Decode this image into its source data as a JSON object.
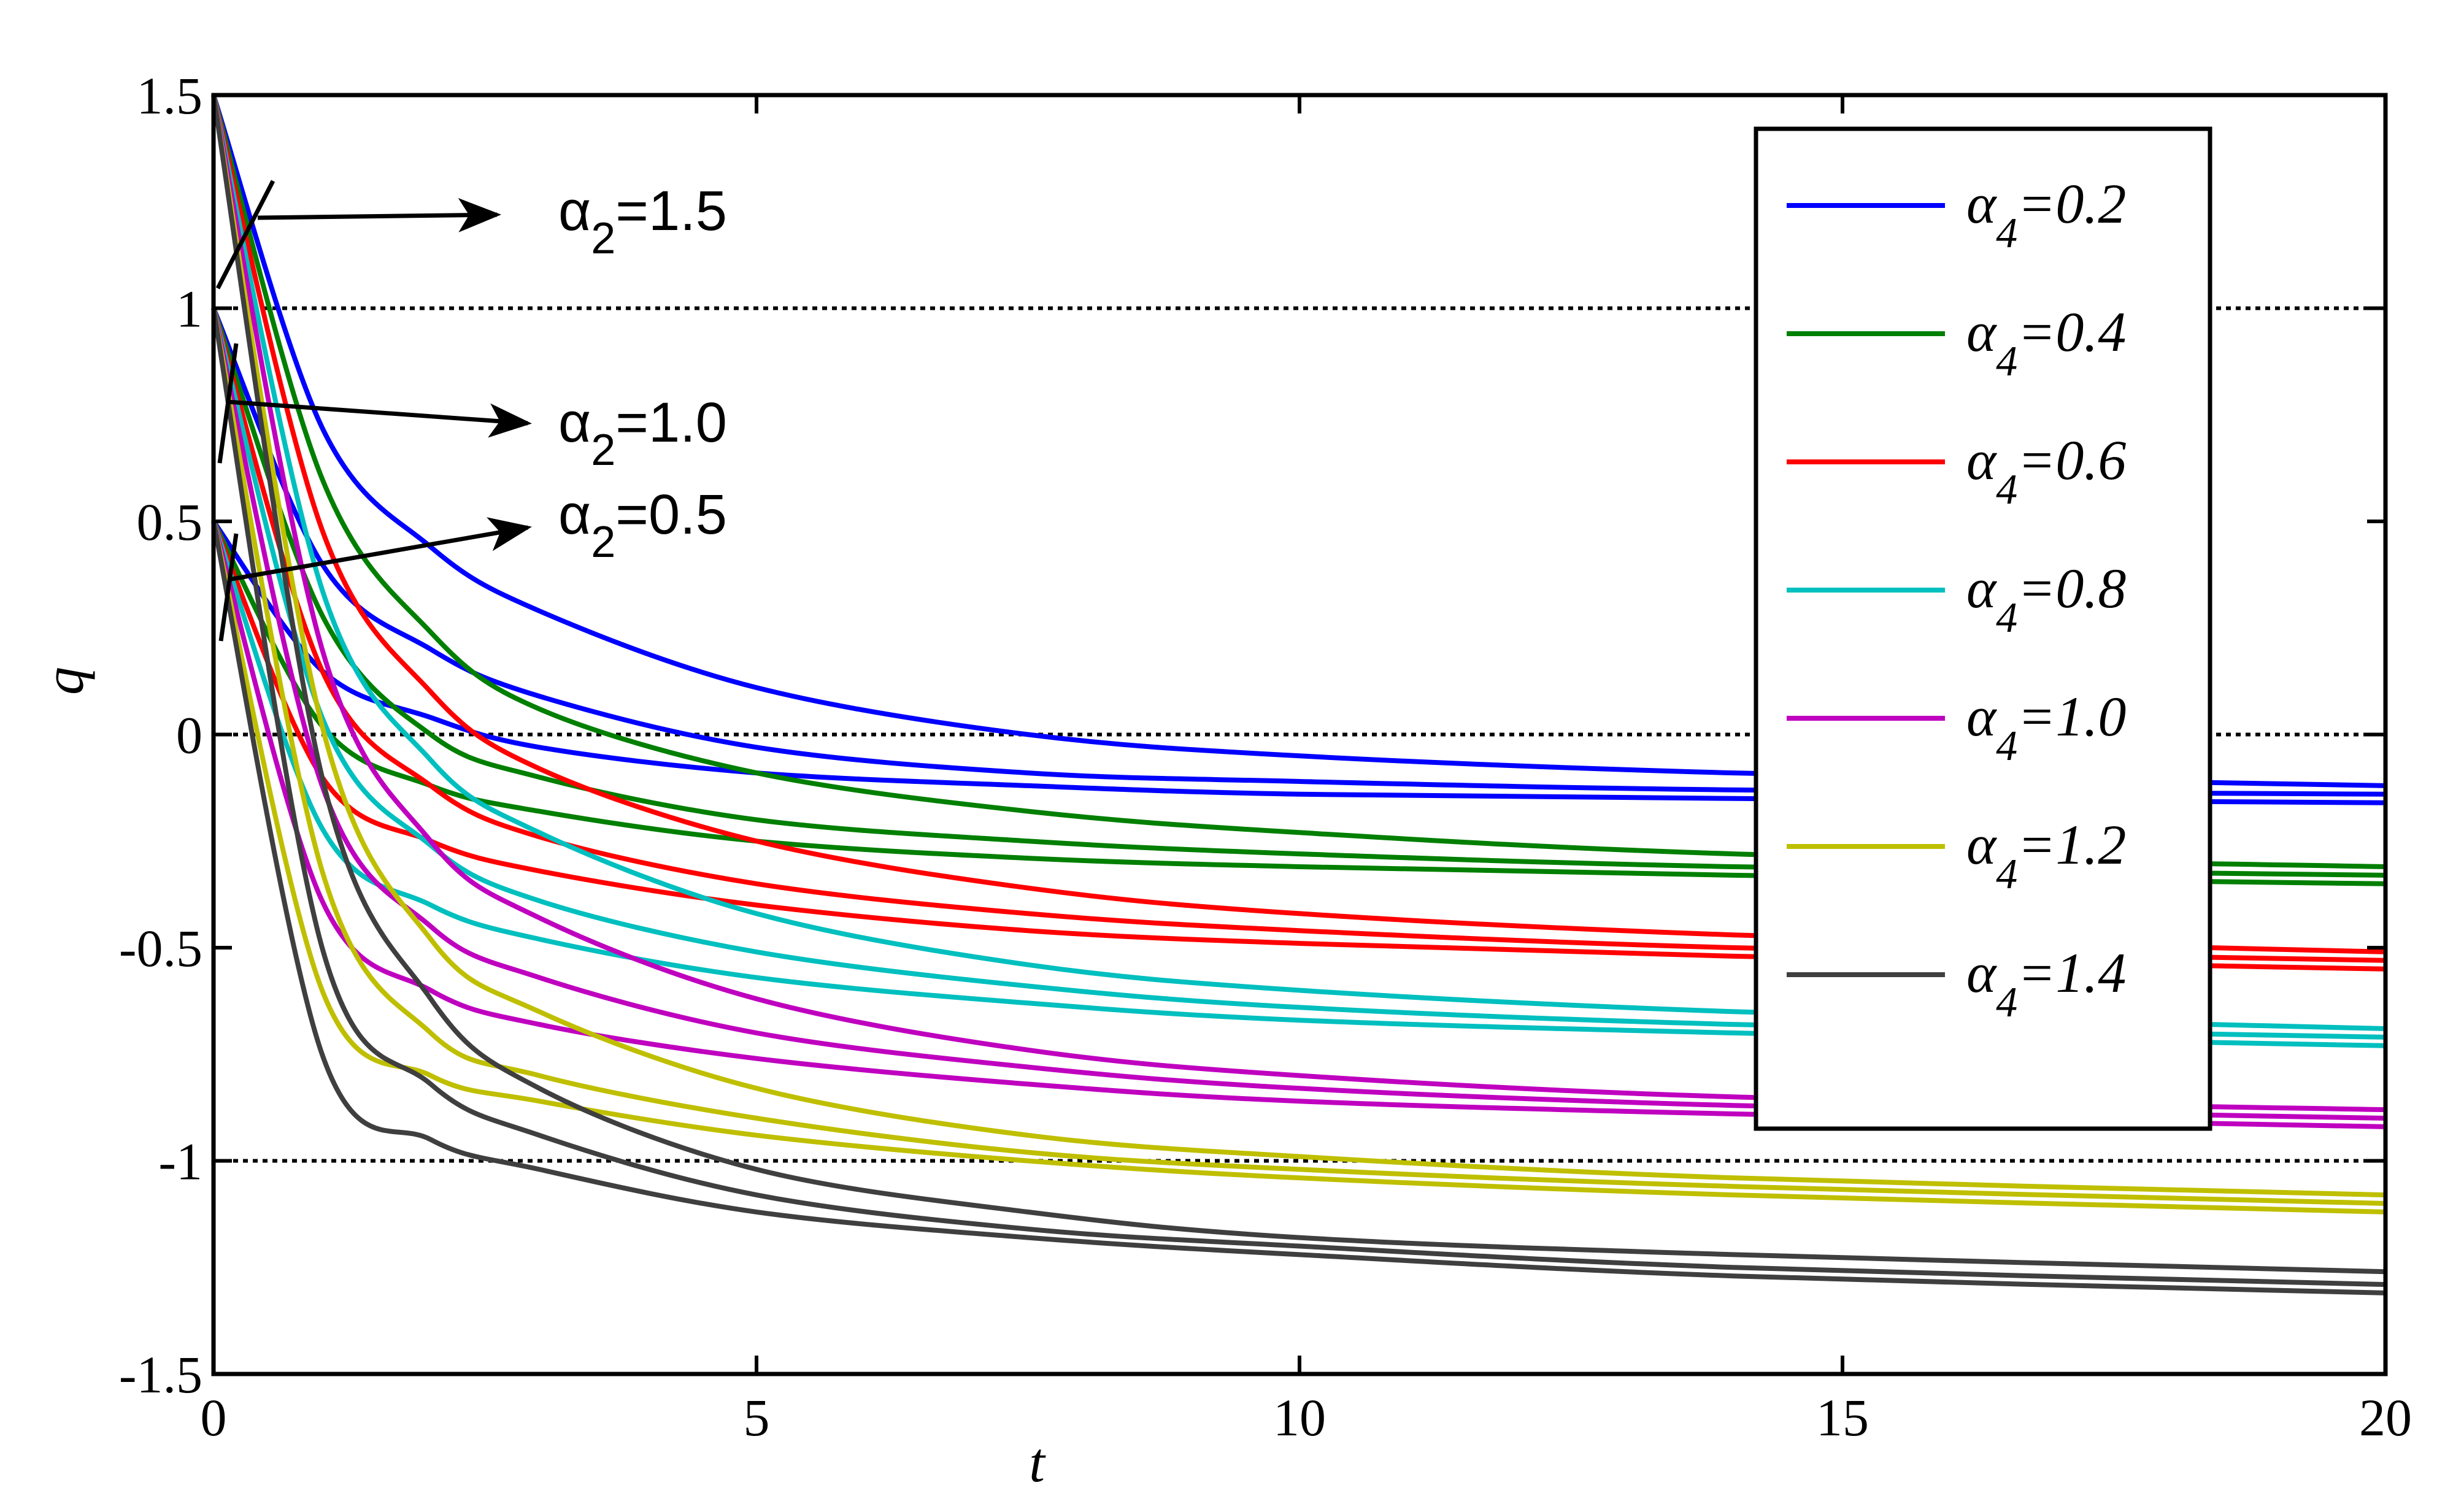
{
  "chart_data": {
    "type": "line",
    "xlabel": "t",
    "ylabel": "q",
    "xlim": [
      0,
      20
    ],
    "ylim": [
      -1.5,
      1.5
    ],
    "x_ticks": [
      "0",
      "5",
      "10",
      "15",
      "20"
    ],
    "y_ticks": [
      "-1.5",
      "-1",
      "-0.5",
      "0",
      "0.5",
      "1",
      "1.5"
    ],
    "reference_lines_y": [
      -1,
      0,
      1
    ],
    "legend_position": "top-right",
    "annotations": [
      {
        "symbol": "α",
        "sub": "2",
        "text": "=1.5",
        "q0": 1.5
      },
      {
        "symbol": "α",
        "sub": "2",
        "text": "=1.0",
        "q0": 1.0
      },
      {
        "symbol": "α",
        "sub": "2",
        "text": "=0.5",
        "q0": 0.5
      }
    ],
    "series": [
      {
        "symbol": "α",
        "sub": "4",
        "text": "=0.2",
        "color": "#0000ff",
        "curves": [
          {
            "q0": 1.5,
            "t": [
              0,
              1,
              2,
              3,
              5,
              7.5,
              10,
              14,
              20
            ],
            "q": [
              1.5,
              0.72,
              0.44,
              0.29,
              0.11,
              0.0,
              -0.05,
              -0.09,
              -0.12
            ]
          },
          {
            "q0": 1.0,
            "t": [
              0,
              1,
              2,
              3,
              5,
              7.5,
              10,
              14,
              20
            ],
            "q": [
              1.0,
              0.4,
              0.2,
              0.09,
              -0.03,
              -0.09,
              -0.11,
              -0.13,
              -0.14
            ]
          },
          {
            "q0": 0.5,
            "t": [
              0,
              1,
              2,
              3,
              5,
              7.5,
              10,
              14,
              20
            ],
            "q": [
              0.5,
              0.15,
              0.04,
              -0.03,
              -0.09,
              -0.12,
              -0.14,
              -0.15,
              -0.16
            ]
          }
        ]
      },
      {
        "symbol": "α",
        "sub": "4",
        "text": "=0.4",
        "color": "#007f00",
        "curves": [
          {
            "q0": 1.5,
            "t": [
              0,
              1,
              2,
              3,
              5,
              7.5,
              10,
              14,
              20
            ],
            "q": [
              1.5,
              0.6,
              0.24,
              0.06,
              -0.09,
              -0.18,
              -0.23,
              -0.28,
              -0.31
            ]
          },
          {
            "q0": 1.0,
            "t": [
              0,
              1,
              2,
              3,
              5,
              7.5,
              10,
              14,
              20
            ],
            "q": [
              1.0,
              0.28,
              0.0,
              -0.1,
              -0.2,
              -0.25,
              -0.28,
              -0.31,
              -0.33
            ]
          },
          {
            "q0": 0.5,
            "t": [
              0,
              1,
              2,
              3,
              5,
              7.5,
              10,
              14,
              20
            ],
            "q": [
              0.5,
              0.02,
              -0.12,
              -0.18,
              -0.25,
              -0.29,
              -0.31,
              -0.33,
              -0.35
            ]
          }
        ]
      },
      {
        "symbol": "α",
        "sub": "4",
        "text": "=0.6",
        "color": "#ff0000",
        "curves": [
          {
            "q0": 1.5,
            "t": [
              0,
              1,
              2,
              3,
              5,
              7.5,
              10,
              14,
              20
            ],
            "q": [
              1.5,
              0.48,
              0.1,
              -0.08,
              -0.25,
              -0.36,
              -0.42,
              -0.47,
              -0.51
            ]
          },
          {
            "q0": 1.0,
            "t": [
              0,
              1,
              2,
              3,
              5,
              7.5,
              10,
              14,
              20
            ],
            "q": [
              1.0,
              0.15,
              -0.12,
              -0.24,
              -0.35,
              -0.42,
              -0.46,
              -0.5,
              -0.53
            ]
          },
          {
            "q0": 0.5,
            "t": [
              0,
              1,
              2,
              3,
              5,
              7.5,
              10,
              14,
              20
            ],
            "q": [
              0.5,
              -0.1,
              -0.25,
              -0.32,
              -0.4,
              -0.46,
              -0.49,
              -0.52,
              -0.55
            ]
          }
        ]
      },
      {
        "symbol": "α",
        "sub": "4",
        "text": "=0.8",
        "color": "#00bfbf",
        "curves": [
          {
            "q0": 1.5,
            "t": [
              0,
              1,
              2,
              3,
              5,
              7.5,
              10,
              14,
              20
            ],
            "q": [
              1.5,
              0.34,
              -0.06,
              -0.23,
              -0.42,
              -0.54,
              -0.6,
              -0.65,
              -0.69
            ]
          },
          {
            "q0": 1.0,
            "t": [
              0,
              1,
              2,
              3,
              5,
              7.5,
              10,
              14,
              20
            ],
            "q": [
              1.0,
              0.04,
              -0.26,
              -0.39,
              -0.51,
              -0.59,
              -0.64,
              -0.68,
              -0.71
            ]
          },
          {
            "q0": 0.5,
            "t": [
              0,
              1,
              2,
              3,
              5,
              7.5,
              10,
              14,
              20
            ],
            "q": [
              0.5,
              -0.22,
              -0.4,
              -0.48,
              -0.57,
              -0.63,
              -0.67,
              -0.7,
              -0.73
            ]
          }
        ]
      },
      {
        "symbol": "α",
        "sub": "4",
        "text": "=1.0",
        "color": "#bf00bf",
        "curves": [
          {
            "q0": 1.5,
            "t": [
              0,
              1,
              2,
              3,
              5,
              7.5,
              10,
              14,
              20
            ],
            "q": [
              1.5,
              0.2,
              -0.25,
              -0.43,
              -0.62,
              -0.74,
              -0.8,
              -0.85,
              -0.88
            ]
          },
          {
            "q0": 1.0,
            "t": [
              0,
              1,
              2,
              3,
              5,
              7.5,
              10,
              14,
              20
            ],
            "q": [
              1.0,
              -0.12,
              -0.45,
              -0.57,
              -0.7,
              -0.78,
              -0.83,
              -0.87,
              -0.9
            ]
          },
          {
            "q0": 0.5,
            "t": [
              0,
              1,
              2,
              3,
              5,
              7.5,
              10,
              14,
              20
            ],
            "q": [
              0.5,
              -0.39,
              -0.6,
              -0.68,
              -0.76,
              -0.82,
              -0.86,
              -0.89,
              -0.92
            ]
          }
        ]
      },
      {
        "symbol": "α",
        "sub": "4",
        "text": "=1.2",
        "color": "#bfbf00",
        "curves": [
          {
            "q0": 1.5,
            "t": [
              0,
              1,
              2,
              3,
              5,
              7.5,
              10,
              14,
              20
            ],
            "q": [
              1.5,
              0.02,
              -0.48,
              -0.65,
              -0.83,
              -0.94,
              -0.99,
              -1.04,
              -1.08
            ]
          },
          {
            "q0": 1.0,
            "t": [
              0,
              1,
              2,
              3,
              5,
              7.5,
              10,
              14,
              20
            ],
            "q": [
              1.0,
              -0.32,
              -0.7,
              -0.8,
              -0.9,
              -0.98,
              -1.02,
              -1.06,
              -1.1
            ]
          },
          {
            "q0": 0.5,
            "t": [
              0,
              1,
              2,
              3,
              5,
              7.5,
              10,
              14,
              20
            ],
            "q": [
              0.5,
              -0.6,
              -0.8,
              -0.86,
              -0.94,
              -1.0,
              -1.04,
              -1.08,
              -1.12
            ]
          }
        ]
      },
      {
        "symbol": "α",
        "sub": "4",
        "text": "=1.4",
        "color": "#3f3f3f",
        "curves": [
          {
            "q0": 1.5,
            "t": [
              0,
              1,
              2,
              3,
              5,
              7.5,
              10,
              14,
              20
            ],
            "q": [
              1.5,
              -0.1,
              -0.62,
              -0.83,
              -1.02,
              -1.12,
              -1.18,
              -1.22,
              -1.26
            ]
          },
          {
            "q0": 1.0,
            "t": [
              0,
              1,
              2,
              3,
              5,
              7.5,
              10,
              14,
              20
            ],
            "q": [
              1.0,
              -0.5,
              -0.82,
              -0.94,
              -1.08,
              -1.16,
              -1.2,
              -1.25,
              -1.29
            ]
          },
          {
            "q0": 0.5,
            "t": [
              0,
              1,
              2,
              3,
              5,
              7.5,
              10,
              14,
              20
            ],
            "q": [
              0.5,
              -0.75,
              -0.95,
              -1.02,
              -1.12,
              -1.18,
              -1.22,
              -1.27,
              -1.31
            ]
          }
        ]
      }
    ]
  }
}
